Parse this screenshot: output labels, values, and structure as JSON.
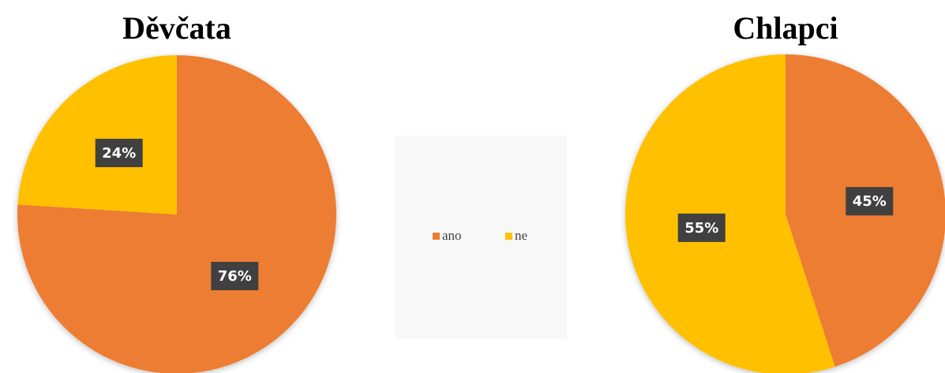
{
  "chart_data": [
    {
      "type": "pie",
      "title": "Děvčata",
      "categories": [
        "ano",
        "ne"
      ],
      "values": [
        76,
        24
      ],
      "value_labels": [
        "76%",
        "24%"
      ],
      "colors": [
        "#ed7d31",
        "#ffc000"
      ]
    },
    {
      "type": "pie",
      "title": "Chlapci",
      "categories": [
        "ano",
        "ne"
      ],
      "values": [
        45,
        55
      ],
      "value_labels": [
        "45%",
        "55%"
      ],
      "colors": [
        "#ed7d31",
        "#ffc000"
      ]
    }
  ]
}
